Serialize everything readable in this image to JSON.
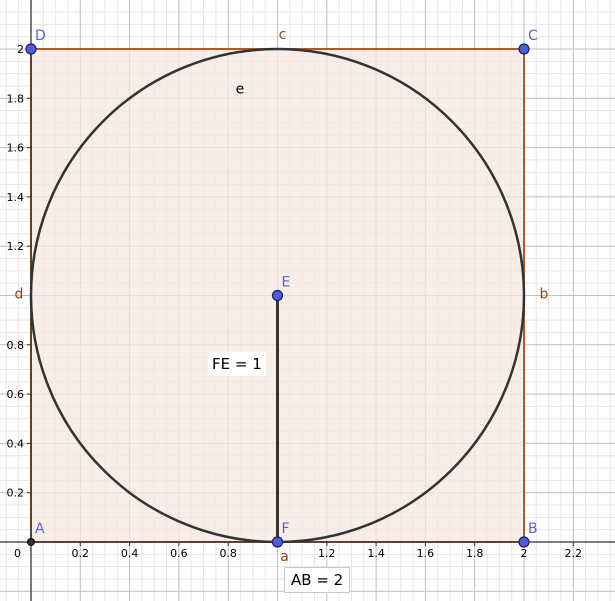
{
  "colors": {
    "square_fill": "#f5e7e0",
    "square_edge": "#b05a2c",
    "circle": "#333333",
    "point_fill": "#4f5ddb",
    "point_label": "#5566cc",
    "side_label": "#8b4513",
    "grid_major": "#bfbfbf",
    "grid_minor": "#e6e6e6",
    "axis": "#333333"
  },
  "axes": {
    "xlim": [
      0,
      2.35
    ],
    "ylim": [
      -0.2,
      2.1
    ],
    "x_ticks": [
      "0.2",
      "0.4",
      "0.6",
      "0.8",
      "1.2",
      "1.4",
      "1.6",
      "1.8",
      "2",
      "2.2"
    ],
    "x_tick_values": [
      0.2,
      0.4,
      0.6,
      0.8,
      1.2,
      1.4,
      1.6,
      1.8,
      2,
      2.2
    ],
    "y_ticks": [
      "0.2",
      "0.4",
      "0.6",
      "0.8",
      "1.2",
      "1.4",
      "1.6",
      "1.8",
      "2"
    ],
    "y_tick_values": [
      0.2,
      0.4,
      0.6,
      0.8,
      1.2,
      1.4,
      1.6,
      1.8,
      2
    ],
    "origin_label": "0"
  },
  "points": [
    {
      "name": "A",
      "x": 0,
      "y": 0,
      "style": "origin"
    },
    {
      "name": "B",
      "x": 2,
      "y": 0,
      "style": "blue"
    },
    {
      "name": "C",
      "x": 2,
      "y": 2,
      "style": "blue"
    },
    {
      "name": "D",
      "x": 0,
      "y": 2,
      "style": "blue"
    },
    {
      "name": "E",
      "x": 1,
      "y": 1,
      "style": "blue"
    },
    {
      "name": "F",
      "x": 1,
      "y": 0,
      "style": "blue"
    }
  ],
  "side_labels": [
    {
      "text": "a",
      "x": 1,
      "y": 0
    },
    {
      "text": "b",
      "x": 2,
      "y": 1
    },
    {
      "text": "c",
      "x": 1,
      "y": 2
    },
    {
      "text": "d",
      "x": 0,
      "y": 1
    }
  ],
  "circle": {
    "cx": 1,
    "cy": 1,
    "r": 1,
    "label": "e"
  },
  "segment": {
    "from": "F",
    "to": "E"
  },
  "labels": {
    "fe": "FE = 1",
    "ab": "AB = 2"
  }
}
